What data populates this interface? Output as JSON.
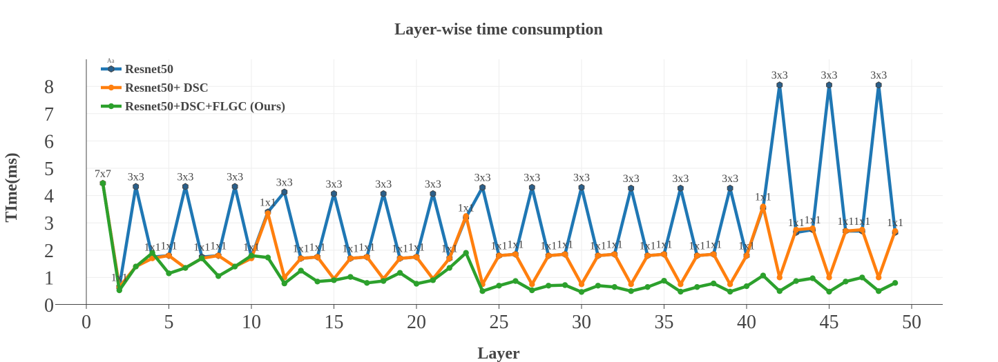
{
  "chart_data": {
    "type": "line",
    "title": "Layer-wise time consumption",
    "xlabel": "Layer",
    "ylabel": "TIme(ms)",
    "xlim": [
      0,
      50
    ],
    "ylim": [
      0,
      8
    ],
    "xticks": [
      0,
      5,
      10,
      15,
      20,
      25,
      30,
      35,
      40,
      45,
      50
    ],
    "yticks": [
      0,
      1,
      2,
      3,
      4,
      5,
      6,
      7,
      8
    ],
    "grid": true,
    "legend_position": "top-left",
    "legend_hint": "Aa",
    "x": [
      1,
      2,
      3,
      4,
      5,
      6,
      7,
      8,
      9,
      10,
      11,
      12,
      13,
      14,
      15,
      16,
      17,
      18,
      19,
      20,
      21,
      22,
      23,
      24,
      25,
      26,
      27,
      28,
      29,
      30,
      31,
      32,
      33,
      34,
      35,
      36,
      37,
      38,
      39,
      40,
      41,
      42,
      43,
      44,
      45,
      46,
      47,
      48,
      49
    ],
    "series": [
      {
        "name": "Resnet50",
        "color": "#1f77b4",
        "marker": "hexagon",
        "values": [
          4.45,
          0.65,
          4.33,
          1.75,
          1.8,
          4.33,
          1.75,
          1.8,
          4.33,
          1.75,
          3.4,
          4.13,
          1.7,
          1.75,
          4.07,
          1.7,
          1.75,
          4.07,
          1.7,
          1.75,
          4.07,
          1.7,
          3.2,
          4.3,
          1.8,
          1.85,
          4.3,
          1.8,
          1.85,
          4.3,
          1.8,
          1.85,
          4.27,
          1.8,
          1.85,
          4.27,
          1.8,
          1.85,
          4.27,
          1.8,
          3.55,
          8.05,
          2.65,
          2.75,
          8.05,
          2.7,
          2.7,
          8.05,
          2.65
        ]
      },
      {
        "name": "Resnet50+ DSC",
        "color": "#ff7f0e",
        "marker": "circle",
        "values": [
          4.45,
          0.65,
          1.4,
          1.7,
          1.8,
          1.35,
          1.7,
          1.8,
          1.4,
          1.7,
          3.35,
          1.0,
          1.7,
          1.75,
          0.95,
          1.7,
          1.75,
          0.95,
          1.7,
          1.75,
          0.95,
          1.7,
          3.25,
          0.75,
          1.8,
          1.85,
          0.75,
          1.8,
          1.85,
          0.75,
          1.8,
          1.85,
          0.75,
          1.8,
          1.85,
          0.75,
          1.8,
          1.85,
          0.75,
          1.8,
          3.6,
          1.0,
          2.75,
          2.8,
          1.0,
          2.7,
          2.75,
          1.0,
          2.7
        ]
      },
      {
        "name": "Resnet50+DSC+FLGC (Ours)",
        "color": "#2ca02c",
        "marker": "circle",
        "values": [
          4.45,
          0.53,
          1.4,
          1.9,
          1.15,
          1.35,
          1.7,
          1.05,
          1.4,
          1.8,
          1.73,
          0.78,
          1.25,
          0.85,
          0.9,
          1.02,
          0.8,
          0.87,
          1.17,
          0.77,
          0.9,
          1.35,
          1.9,
          0.5,
          0.7,
          0.87,
          0.53,
          0.7,
          0.72,
          0.47,
          0.7,
          0.65,
          0.5,
          0.65,
          0.88,
          0.48,
          0.65,
          0.78,
          0.48,
          0.68,
          1.07,
          0.5,
          0.87,
          0.97,
          0.48,
          0.85,
          1.0,
          0.5,
          0.8
        ]
      }
    ],
    "annotations": [
      {
        "x": 1,
        "y": 4.45,
        "text": "7x7"
      },
      {
        "x": 2,
        "y": 0.65,
        "text": "1x1"
      },
      {
        "x": 3,
        "y": 4.33,
        "text": "3x3"
      },
      {
        "x": 4,
        "y": 1.75,
        "text": "1x1"
      },
      {
        "x": 5,
        "y": 1.8,
        "text": "1x1"
      },
      {
        "x": 6,
        "y": 4.33,
        "text": "3x3"
      },
      {
        "x": 7,
        "y": 1.75,
        "text": "1x1"
      },
      {
        "x": 8,
        "y": 1.8,
        "text": "1x1"
      },
      {
        "x": 9,
        "y": 4.33,
        "text": "3x3"
      },
      {
        "x": 10,
        "y": 1.75,
        "text": "1x1"
      },
      {
        "x": 11,
        "y": 3.4,
        "text": "1x1"
      },
      {
        "x": 12,
        "y": 4.13,
        "text": "3x3"
      },
      {
        "x": 13,
        "y": 1.7,
        "text": "1x1"
      },
      {
        "x": 14,
        "y": 1.75,
        "text": "1x1"
      },
      {
        "x": 15,
        "y": 4.07,
        "text": "3x3"
      },
      {
        "x": 16,
        "y": 1.7,
        "text": "1x1"
      },
      {
        "x": 17,
        "y": 1.75,
        "text": "1x1"
      },
      {
        "x": 18,
        "y": 4.07,
        "text": "3x3"
      },
      {
        "x": 19,
        "y": 1.7,
        "text": "1x1"
      },
      {
        "x": 20,
        "y": 1.75,
        "text": "1x1"
      },
      {
        "x": 21,
        "y": 4.07,
        "text": "3x3"
      },
      {
        "x": 22,
        "y": 1.7,
        "text": "1x1"
      },
      {
        "x": 23,
        "y": 3.2,
        "text": "1x1"
      },
      {
        "x": 24,
        "y": 4.3,
        "text": "3x3"
      },
      {
        "x": 25,
        "y": 1.8,
        "text": "1x1"
      },
      {
        "x": 26,
        "y": 1.85,
        "text": "1x1"
      },
      {
        "x": 27,
        "y": 4.3,
        "text": "3x3"
      },
      {
        "x": 28,
        "y": 1.8,
        "text": "1x1"
      },
      {
        "x": 29,
        "y": 1.85,
        "text": "1x1"
      },
      {
        "x": 30,
        "y": 4.3,
        "text": "3x3"
      },
      {
        "x": 31,
        "y": 1.8,
        "text": "1x1"
      },
      {
        "x": 32,
        "y": 1.85,
        "text": "1x1"
      },
      {
        "x": 33,
        "y": 4.27,
        "text": "3x3"
      },
      {
        "x": 34,
        "y": 1.8,
        "text": "1x1"
      },
      {
        "x": 35,
        "y": 1.85,
        "text": "1x1"
      },
      {
        "x": 36,
        "y": 4.27,
        "text": "3x3"
      },
      {
        "x": 37,
        "y": 1.8,
        "text": "1x1"
      },
      {
        "x": 38,
        "y": 1.85,
        "text": "1x1"
      },
      {
        "x": 39,
        "y": 4.27,
        "text": "3x3"
      },
      {
        "x": 40,
        "y": 1.8,
        "text": "1x1"
      },
      {
        "x": 41,
        "y": 3.6,
        "text": "1x1"
      },
      {
        "x": 42,
        "y": 8.05,
        "text": "3x3"
      },
      {
        "x": 43,
        "y": 2.65,
        "text": "1x1"
      },
      {
        "x": 44,
        "y": 2.75,
        "text": "1x1"
      },
      {
        "x": 45,
        "y": 8.05,
        "text": "3x3"
      },
      {
        "x": 46,
        "y": 2.7,
        "text": "1x1"
      },
      {
        "x": 47,
        "y": 2.7,
        "text": "1x1"
      },
      {
        "x": 48,
        "y": 8.05,
        "text": "3x3"
      },
      {
        "x": 49,
        "y": 2.65,
        "text": "1x1"
      }
    ]
  }
}
